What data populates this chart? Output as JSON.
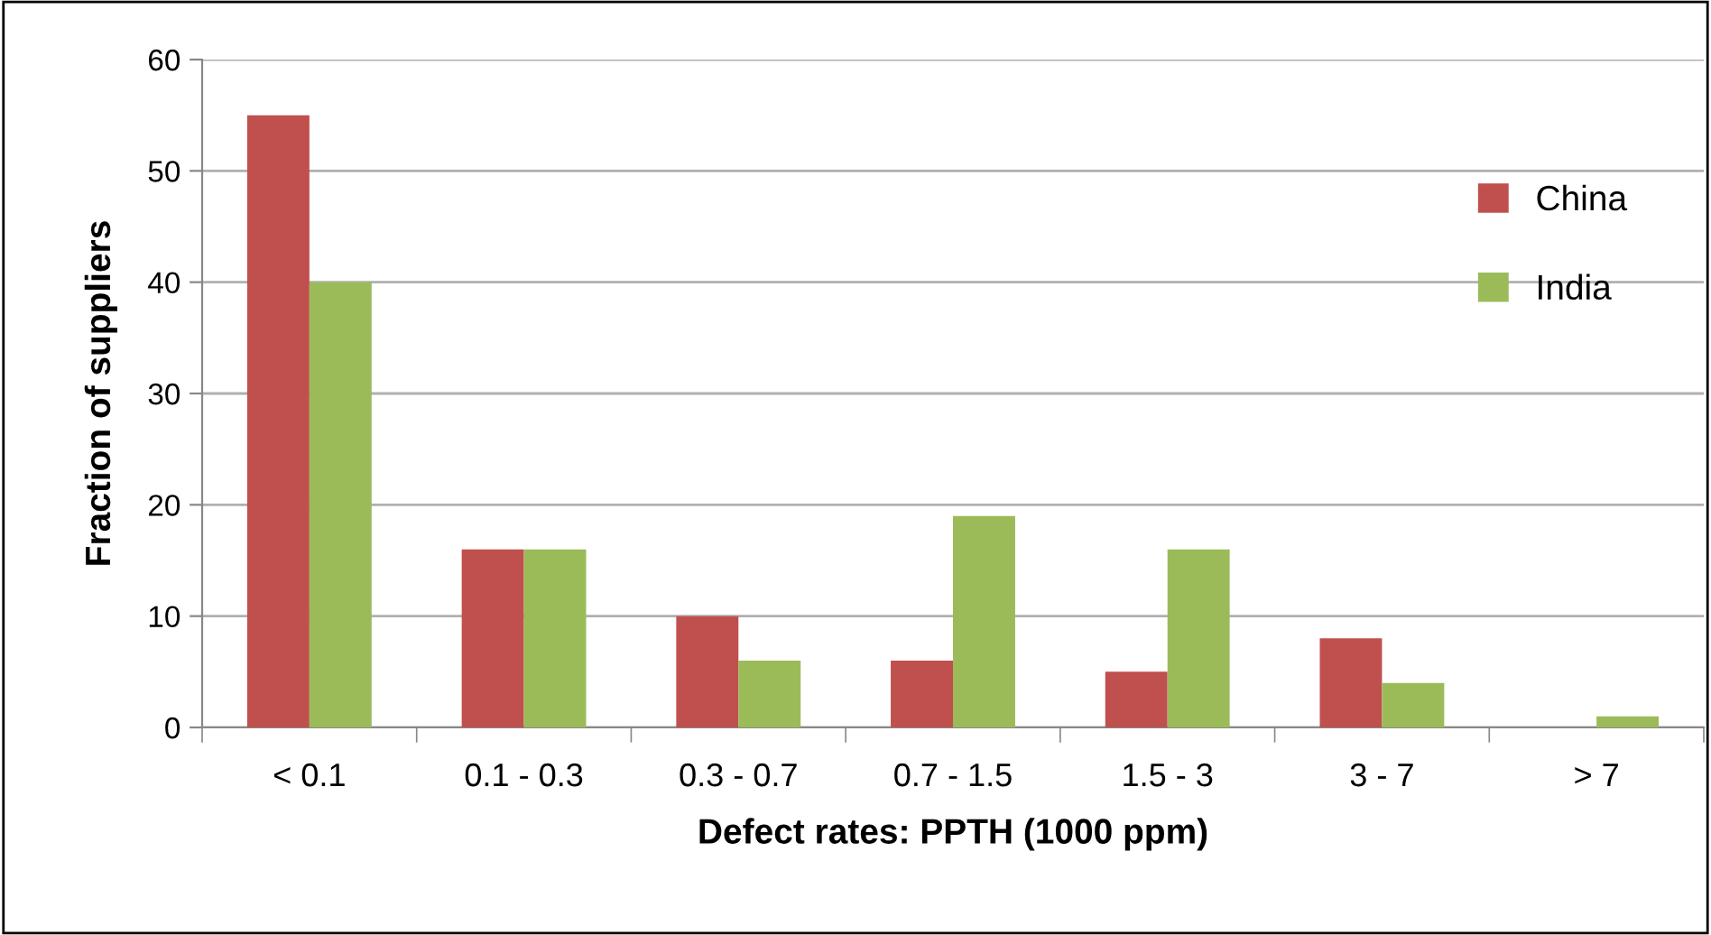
{
  "chart_data": {
    "type": "bar",
    "xlabel": "Defect rates: PPTH (1000 ppm)",
    "ylabel": "Fraction of suppliers",
    "categories": [
      "< 0.1",
      "0.1 - 0.3",
      "0.3 - 0.7",
      "0.7 - 1.5",
      "1.5 - 3",
      "3 - 7",
      "> 7"
    ],
    "series": [
      {
        "name": "China",
        "color": "#c0504d",
        "values": [
          55,
          16,
          10,
          6,
          5,
          8,
          0
        ]
      },
      {
        "name": "India",
        "color": "#9bbb59",
        "values": [
          40,
          16,
          6,
          19,
          16,
          4,
          1
        ]
      }
    ],
    "ylim": [
      0,
      60
    ],
    "yticks": [
      0,
      10,
      20,
      30,
      40,
      50,
      60
    ],
    "grid": "y",
    "legend": "top right"
  }
}
